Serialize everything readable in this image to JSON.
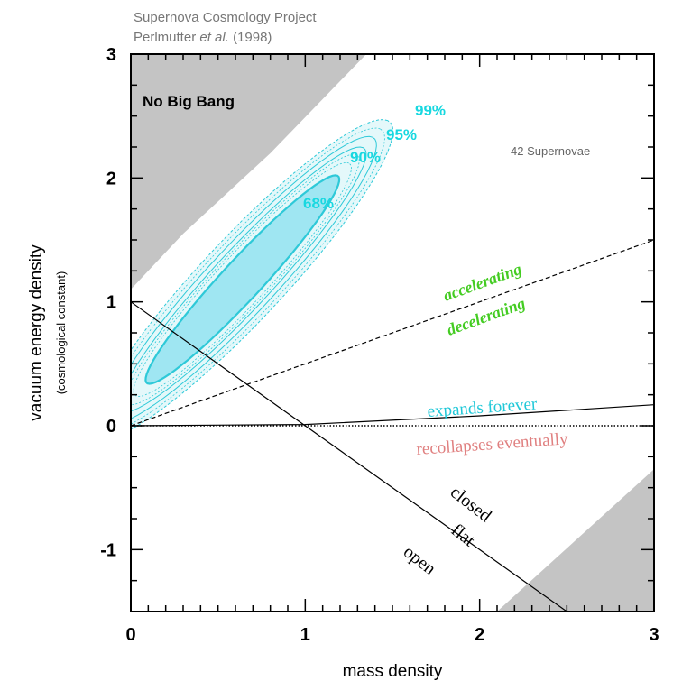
{
  "header": {
    "line1": "Supernova Cosmology Project",
    "line2_author": "Perlmutter",
    "line2_etal": "et al.",
    "line2_year": "(1998)"
  },
  "annotations": {
    "no_big_bang": "No Big Bang",
    "n_supernovae": "42 Supernovae",
    "accelerating": "accelerating",
    "decelerating": "decelerating",
    "expands_forever": "expands forever",
    "recollapses_eventually": "recollapses eventually",
    "closed": "closed",
    "flat": "flat",
    "open": "open"
  },
  "colors": {
    "contour_fill_outer": "#e4f8fa",
    "contour_fill_inner": "#9fe6f2",
    "contour_line": "#2ec9d8",
    "contour_label": "#18d8e0",
    "no_big_bang_region": "#c4c4c4",
    "accel_label": "#44cc22",
    "expands_label": "#20c8d8",
    "recollapse_label": "#e08080"
  },
  "chart_data": {
    "type": "contour",
    "xlabel": "mass density",
    "ylabel": "vacuum energy density",
    "ylabel_sub": "(cosmological constant)",
    "xlim": [
      0,
      3
    ],
    "ylim": [
      -1.5,
      3
    ],
    "x_ticks": [
      "0",
      "1",
      "2",
      "3"
    ],
    "y_ticks": [
      "-1",
      "0",
      "1",
      "2",
      "3"
    ],
    "confidence_levels": [
      {
        "label": "68%",
        "semi_major": 1.0,
        "semi_minor": 0.13
      },
      {
        "label": "90%",
        "semi_major": 1.27,
        "semi_minor": 0.19
      },
      {
        "label": "95%",
        "semi_major": 1.37,
        "semi_minor": 0.22
      },
      {
        "label": "99%",
        "semi_major": 1.53,
        "semi_minor": 0.27
      }
    ],
    "ellipse_center": [
      0.64,
      1.18
    ],
    "ellipse_angle_deg": 57,
    "lines": [
      {
        "name": "flat",
        "points": [
          [
            0,
            1
          ],
          [
            2.5,
            -1.5
          ]
        ],
        "style": "solid"
      },
      {
        "name": "acceleration boundary",
        "points": [
          [
            0,
            0
          ],
          [
            3,
            1.5
          ]
        ],
        "style": "dashed"
      },
      {
        "name": "expansion boundary",
        "points": [
          [
            0,
            0
          ],
          [
            1,
            0.01
          ],
          [
            2,
            0.08
          ],
          [
            3,
            0.17
          ]
        ],
        "style": "solid"
      },
      {
        "name": "lambda zero",
        "points": [
          [
            0,
            0
          ],
          [
            3,
            0
          ]
        ],
        "style": "dotted"
      }
    ],
    "regions": [
      {
        "name": "No Big Bang",
        "boundary": [
          [
            0,
            1.1
          ],
          [
            0.3,
            1.55
          ],
          [
            0.8,
            2.2
          ],
          [
            1.35,
            3
          ]
        ]
      },
      {
        "name": "lower right",
        "boundary": [
          [
            2.1,
            -1.5
          ],
          [
            3,
            -0.35
          ]
        ]
      }
    ]
  }
}
